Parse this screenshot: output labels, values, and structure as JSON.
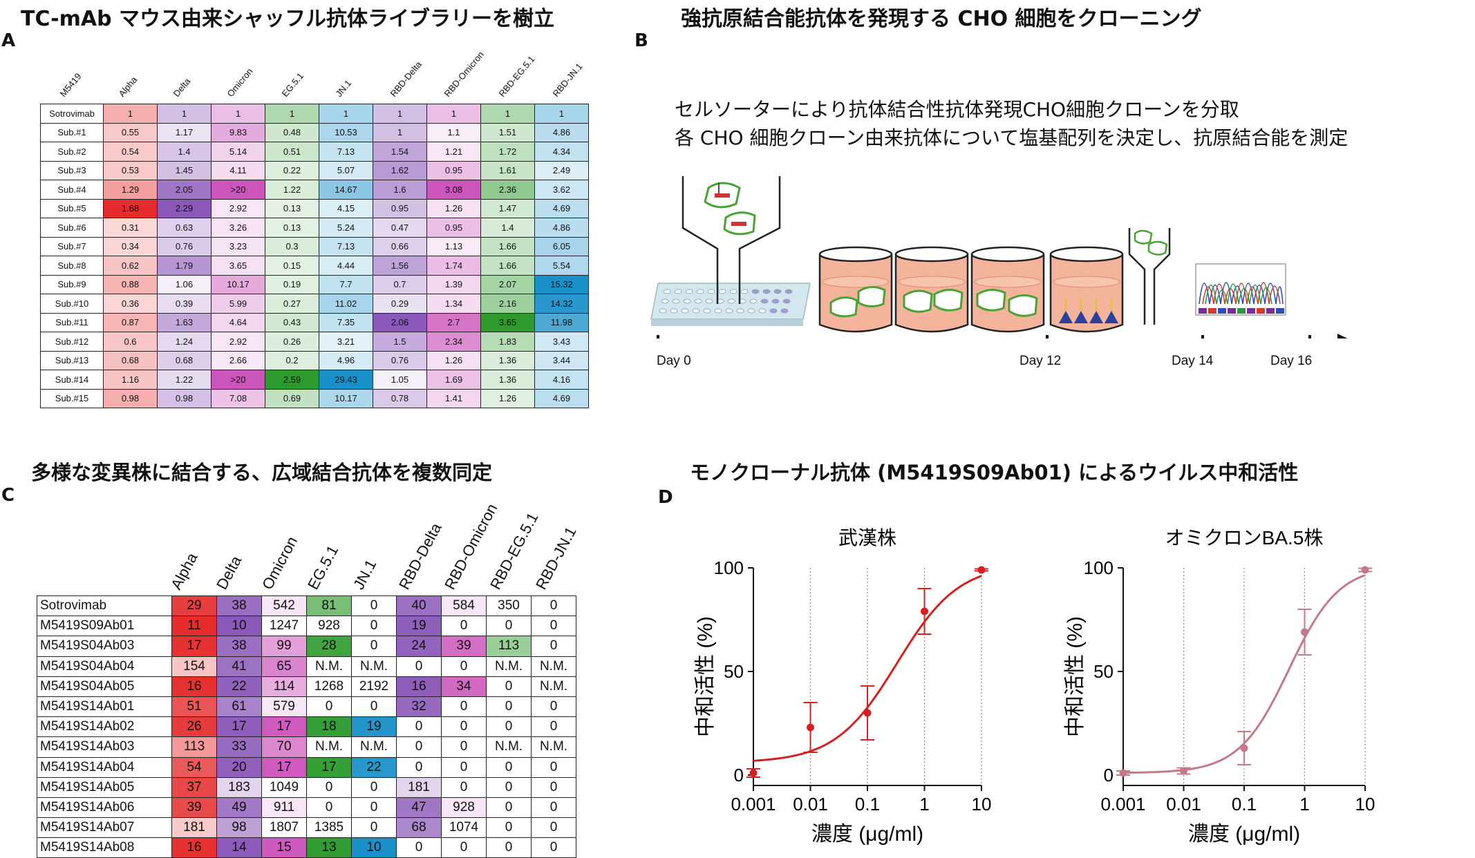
{
  "panelA": {
    "title": "TC-mAb マウス由来シャッフル抗体ライブラリーを樹立",
    "label": "A",
    "corner": "M5419",
    "columns": [
      "Alpha",
      "Delta",
      "Omicron",
      "EG.5.1",
      "JN.1",
      "RBD-Delta",
      "RBD-Omicron",
      "RBD-EG.5.1",
      "RBD-JN.1"
    ],
    "rows": [
      {
        "name": "Sotrovimab",
        "values": [
          "1",
          "1",
          "1",
          "1",
          "1",
          "1",
          "1",
          "1",
          "1"
        ]
      },
      {
        "name": "Sub.#1",
        "values": [
          "0.55",
          "1.17",
          "9.83",
          "0.48",
          "10.53",
          "1",
          "1.1",
          "1.51",
          "4.86"
        ]
      },
      {
        "name": "Sub.#2",
        "values": [
          "0.54",
          "1.4",
          "5.14",
          "0.51",
          "7.13",
          "1.54",
          "1.21",
          "1.72",
          "4.34"
        ]
      },
      {
        "name": "Sub.#3",
        "values": [
          "0.53",
          "1.45",
          "4.11",
          "0.22",
          "5.07",
          "1.62",
          "0.95",
          "1.61",
          "2.49"
        ]
      },
      {
        "name": "Sub.#4",
        "values": [
          "1.29",
          "2.05",
          ">20",
          "1.22",
          "14.67",
          "1.6",
          "3.08",
          "2.36",
          "3.62"
        ]
      },
      {
        "name": "Sub.#5",
        "values": [
          "1.68",
          "2.29",
          "2.92",
          "0.13",
          "4.15",
          "0.95",
          "1.26",
          "1.47",
          "4.69"
        ]
      },
      {
        "name": "Sub.#6",
        "values": [
          "0.31",
          "0.63",
          "3.26",
          "0.13",
          "5.24",
          "0.47",
          "0.95",
          "1.4",
          "4.86"
        ]
      },
      {
        "name": "Sub.#7",
        "values": [
          "0.34",
          "0.76",
          "3.23",
          "0.3",
          "7.13",
          "0.66",
          "1.13",
          "1.66",
          "6.05"
        ]
      },
      {
        "name": "Sub.#8",
        "values": [
          "0.62",
          "1.79",
          "3.65",
          "0.15",
          "4.44",
          "1.56",
          "1.74",
          "1.66",
          "5.54"
        ]
      },
      {
        "name": "Sub.#9",
        "values": [
          "0.88",
          "1.06",
          "10.17",
          "0.19",
          "7.7",
          "0.7",
          "1.39",
          "2.07",
          "15.32"
        ]
      },
      {
        "name": "Sub.#10",
        "values": [
          "0.36",
          "0.39",
          "5.99",
          "0.27",
          "11.02",
          "0.29",
          "1.34",
          "2.16",
          "14.32"
        ]
      },
      {
        "name": "Sub.#11",
        "values": [
          "0.87",
          "1.63",
          "4.64",
          "0.43",
          "7.35",
          "2.06",
          "2.7",
          "3.65",
          "11.98"
        ]
      },
      {
        "name": "Sub.#12",
        "values": [
          "0.6",
          "1.24",
          "2.92",
          "0.26",
          "3.21",
          "1.5",
          "2.34",
          "1.83",
          "3.43"
        ]
      },
      {
        "name": "Sub.#13",
        "values": [
          "0.68",
          "0.68",
          "2.66",
          "0.2",
          "4.96",
          "0.76",
          "1.26",
          "1.36",
          "3.44"
        ]
      },
      {
        "name": "Sub.#14",
        "values": [
          "1.16",
          "1.22",
          ">20",
          "2.59",
          "29.43",
          "1.05",
          "1.69",
          "1.36",
          "4.16"
        ]
      },
      {
        "name": "Sub.#15",
        "values": [
          "0.98",
          "0.98",
          "7.08",
          "0.69",
          "10.17",
          "0.78",
          "1.41",
          "1.26",
          "4.69"
        ]
      }
    ]
  },
  "panelB": {
    "title": "強抗原結合能抗体を発現する CHO 細胞をクローニング",
    "label": "B",
    "line1": "セルソーターにより抗体結合性抗体発現CHO細胞クローンを分取",
    "line2": "各 CHO 細胞クローン由来抗体について塩基配列を決定し、抗原結合能を測定",
    "days": [
      "Day 0",
      "Day 12",
      "Day 14",
      "Day 16"
    ]
  },
  "panelC": {
    "title": "多様な変異株に結合する、広域結合抗体を複数同定",
    "label": "C",
    "columns": [
      "Alpha",
      "Delta",
      "Omicron",
      "EG.5.1",
      "JN.1",
      "RBD-Delta",
      "RBD-Omicron",
      "RBD-EG.5.1",
      "RBD-JN.1"
    ],
    "rows": [
      {
        "name": "Sotrovimab",
        "values": [
          "29",
          "38",
          "542",
          "81",
          "0",
          "40",
          "584",
          "350",
          "0"
        ]
      },
      {
        "name": "M5419S09Ab01",
        "values": [
          "11",
          "10",
          "1247",
          "928",
          "0",
          "19",
          "0",
          "0",
          "0"
        ]
      },
      {
        "name": "M5419S04Ab03",
        "values": [
          "17",
          "38",
          "99",
          "28",
          "0",
          "24",
          "39",
          "113",
          "0"
        ]
      },
      {
        "name": "M5419S04Ab04",
        "values": [
          "154",
          "41",
          "65",
          "N.M.",
          "N.M.",
          "0",
          "0",
          "N.M.",
          "N.M."
        ]
      },
      {
        "name": "M5419S04Ab05",
        "values": [
          "16",
          "22",
          "114",
          "1268",
          "2192",
          "16",
          "34",
          "0",
          "N.M."
        ]
      },
      {
        "name": "M5419S14Ab01",
        "values": [
          "51",
          "61",
          "579",
          "0",
          "0",
          "32",
          "0",
          "0",
          "0"
        ]
      },
      {
        "name": "M5419S14Ab02",
        "values": [
          "26",
          "17",
          "17",
          "18",
          "19",
          "0",
          "0",
          "0",
          "0"
        ]
      },
      {
        "name": "M5419S14Ab03",
        "values": [
          "113",
          "33",
          "70",
          "N.M.",
          "N.M.",
          "0",
          "0",
          "N.M.",
          "N.M."
        ]
      },
      {
        "name": "M5419S14Ab04",
        "values": [
          "54",
          "20",
          "17",
          "17",
          "22",
          "0",
          "0",
          "0",
          "0"
        ]
      },
      {
        "name": "M5419S14Ab05",
        "values": [
          "37",
          "183",
          "1049",
          "0",
          "0",
          "181",
          "0",
          "0",
          "0"
        ]
      },
      {
        "name": "M5419S14Ab06",
        "values": [
          "39",
          "49",
          "911",
          "0",
          "0",
          "47",
          "928",
          "0",
          "0"
        ]
      },
      {
        "name": "M5419S14Ab07",
        "values": [
          "181",
          "98",
          "1807",
          "1385",
          "0",
          "68",
          "1074",
          "0",
          "0"
        ]
      },
      {
        "name": "M5419S14Ab08",
        "values": [
          "16",
          "14",
          "15",
          "13",
          "10",
          "0",
          "0",
          "0",
          "0"
        ]
      }
    ]
  },
  "panelD": {
    "title": "モノクローナル抗体 (M5419S09Ab01) によるウイルス中和活性",
    "label": "D"
  },
  "chart_data": [
    {
      "type": "scatter",
      "title": "武漢株",
      "xlabel": "濃度 (μg/ml)",
      "ylabel": "中和活性 (%)",
      "xscale": "log",
      "xlim": [
        0.001,
        10
      ],
      "ylim": [
        0,
        100
      ],
      "xticks": [
        "0.001",
        "0.01",
        "0.1",
        "1",
        "10"
      ],
      "yticks": [
        "0",
        "50",
        "100"
      ],
      "color": "#d42020",
      "x": [
        0.001,
        0.01,
        0.1,
        1,
        10
      ],
      "y": [
        1,
        23,
        30,
        79,
        99
      ],
      "err": [
        2,
        12,
        13,
        11,
        0.5
      ],
      "fit": {
        "bottom": 6,
        "top": 102,
        "ec50": 0.33,
        "hill": 0.8
      }
    },
    {
      "type": "scatter",
      "title": "オミクロンBA.5株",
      "xlabel": "濃度 (μg/ml)",
      "ylabel": "中和活性 (%)",
      "xscale": "log",
      "xlim": [
        0.001,
        10
      ],
      "ylim": [
        0,
        100
      ],
      "xticks": [
        "0.001",
        "0.01",
        "0.1",
        "1",
        "10"
      ],
      "yticks": [
        "0",
        "50",
        "100"
      ],
      "color": "#c47a86",
      "x": [
        0.001,
        0.01,
        0.1,
        1,
        10
      ],
      "y": [
        1,
        2,
        13,
        69,
        99
      ],
      "err": [
        1,
        1.5,
        8,
        11,
        0.8
      ],
      "fit": {
        "bottom": 1,
        "top": 101,
        "ec50": 0.55,
        "hill": 1.05
      }
    }
  ]
}
